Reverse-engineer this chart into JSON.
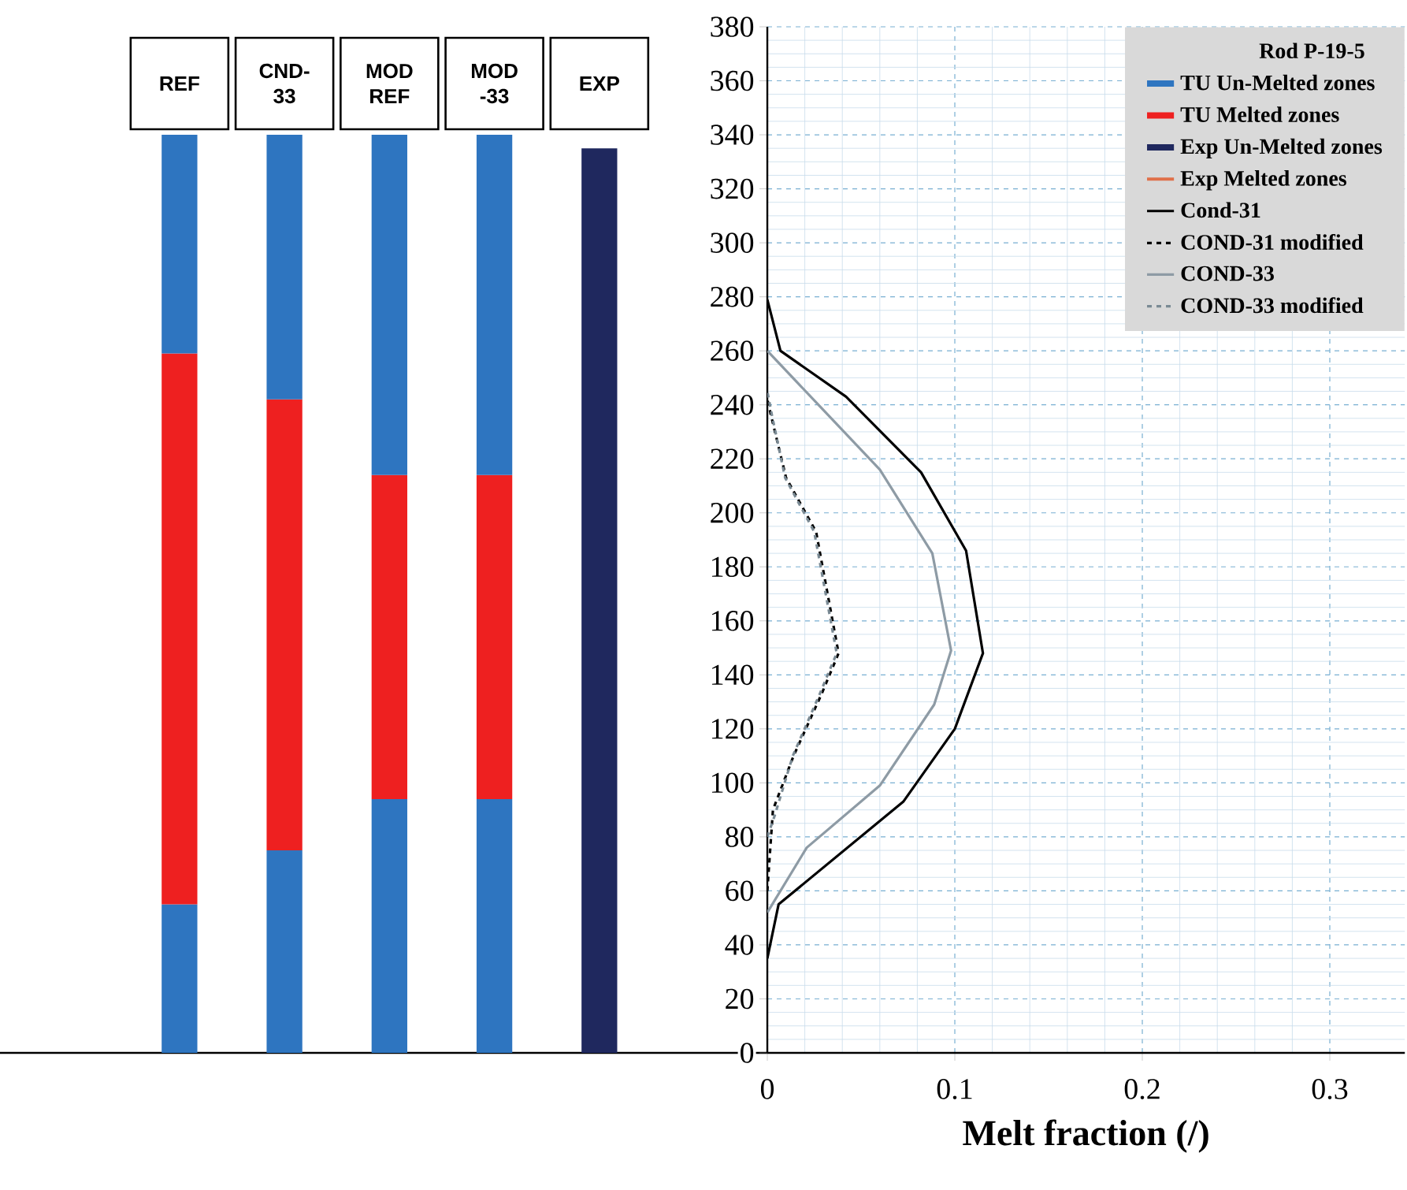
{
  "chart_data": [
    {
      "type": "bar",
      "stacked": true,
      "categories": [
        "REF",
        "CND-33",
        "MOD REF",
        "MOD -33",
        "EXP"
      ],
      "ylim": [
        0,
        380
      ],
      "yticks": [
        0,
        20,
        40,
        60,
        80,
        100,
        120,
        140,
        160,
        180,
        200,
        220,
        240,
        260,
        280,
        300,
        320,
        340,
        360,
        380
      ],
      "grid": "y",
      "tick_labels": "x",
      "series": [
        {
          "name": "TU Un-Melted zones",
          "color": "#2e75c0",
          "values": [
            55,
            75,
            94,
            94,
            null
          ]
        },
        {
          "name": "TU Melted zones",
          "color": "#ee2020",
          "values": [
            204,
            167,
            120,
            120,
            null
          ]
        },
        {
          "color": "#2e75c0",
          "values": [
            81,
            98,
            126,
            126,
            null
          ]
        },
        {
          "name": "Exp Un-Melted zones",
          "color": "#1f285e",
          "values": [
            null,
            null,
            null,
            null,
            335
          ]
        },
        {
          "name": "Exp Melted zones",
          "color": "#e0704a",
          "values": [
            null,
            null,
            null,
            null,
            null
          ]
        }
      ]
    },
    {
      "type": "line",
      "xlabel": "Melt fraction (/)",
      "legend_title": "Rod P-19-5",
      "legend": "top right",
      "grid": true,
      "xlim": [
        0,
        0.34
      ],
      "ylim": [
        0,
        380
      ],
      "xticks": [
        0,
        0.1,
        0.2,
        0.3
      ],
      "yticks": [
        0,
        20,
        40,
        60,
        80,
        100,
        120,
        140,
        160,
        180,
        200,
        220,
        240,
        260,
        280,
        300,
        320,
        340,
        360,
        380
      ],
      "series": [
        {
          "name": "Cond-31",
          "color": "#000000",
          "line_style": "solid",
          "x": [
            0,
            0.006,
            0.0725,
            0.1,
            0.115,
            0.106,
            0.082,
            0.042,
            0.007,
            0
          ],
          "values": [
            35,
            55,
            93,
            120,
            148,
            186,
            215,
            243,
            260,
            279
          ]
        },
        {
          "name": "COND-31 modified",
          "color": "#000000",
          "line_style": "dashed",
          "x": [
            0,
            0.003,
            0.014,
            0.029,
            0.038,
            0.026,
            0.01,
            0.002,
            0
          ],
          "values": [
            60,
            90,
            110,
            133,
            148,
            193,
            213,
            236,
            242
          ]
        },
        {
          "name": "COND-33",
          "color": "#8e9ba5",
          "line_style": "solid",
          "x": [
            0,
            0.021,
            0.06,
            0.089,
            0.098,
            0.088,
            0.06,
            0
          ],
          "values": [
            52,
            76,
            99,
            129,
            149,
            185,
            216,
            260
          ]
        },
        {
          "name": "COND-33 modified",
          "color": "#7a8a94",
          "line_style": "dashed",
          "x": [
            0,
            0.004,
            0.0136,
            0.028,
            0.037,
            0.025,
            0.0095,
            0.0025,
            0
          ],
          "values": [
            80,
            88,
            110,
            133,
            148,
            193,
            213,
            236,
            245
          ]
        }
      ]
    }
  ]
}
